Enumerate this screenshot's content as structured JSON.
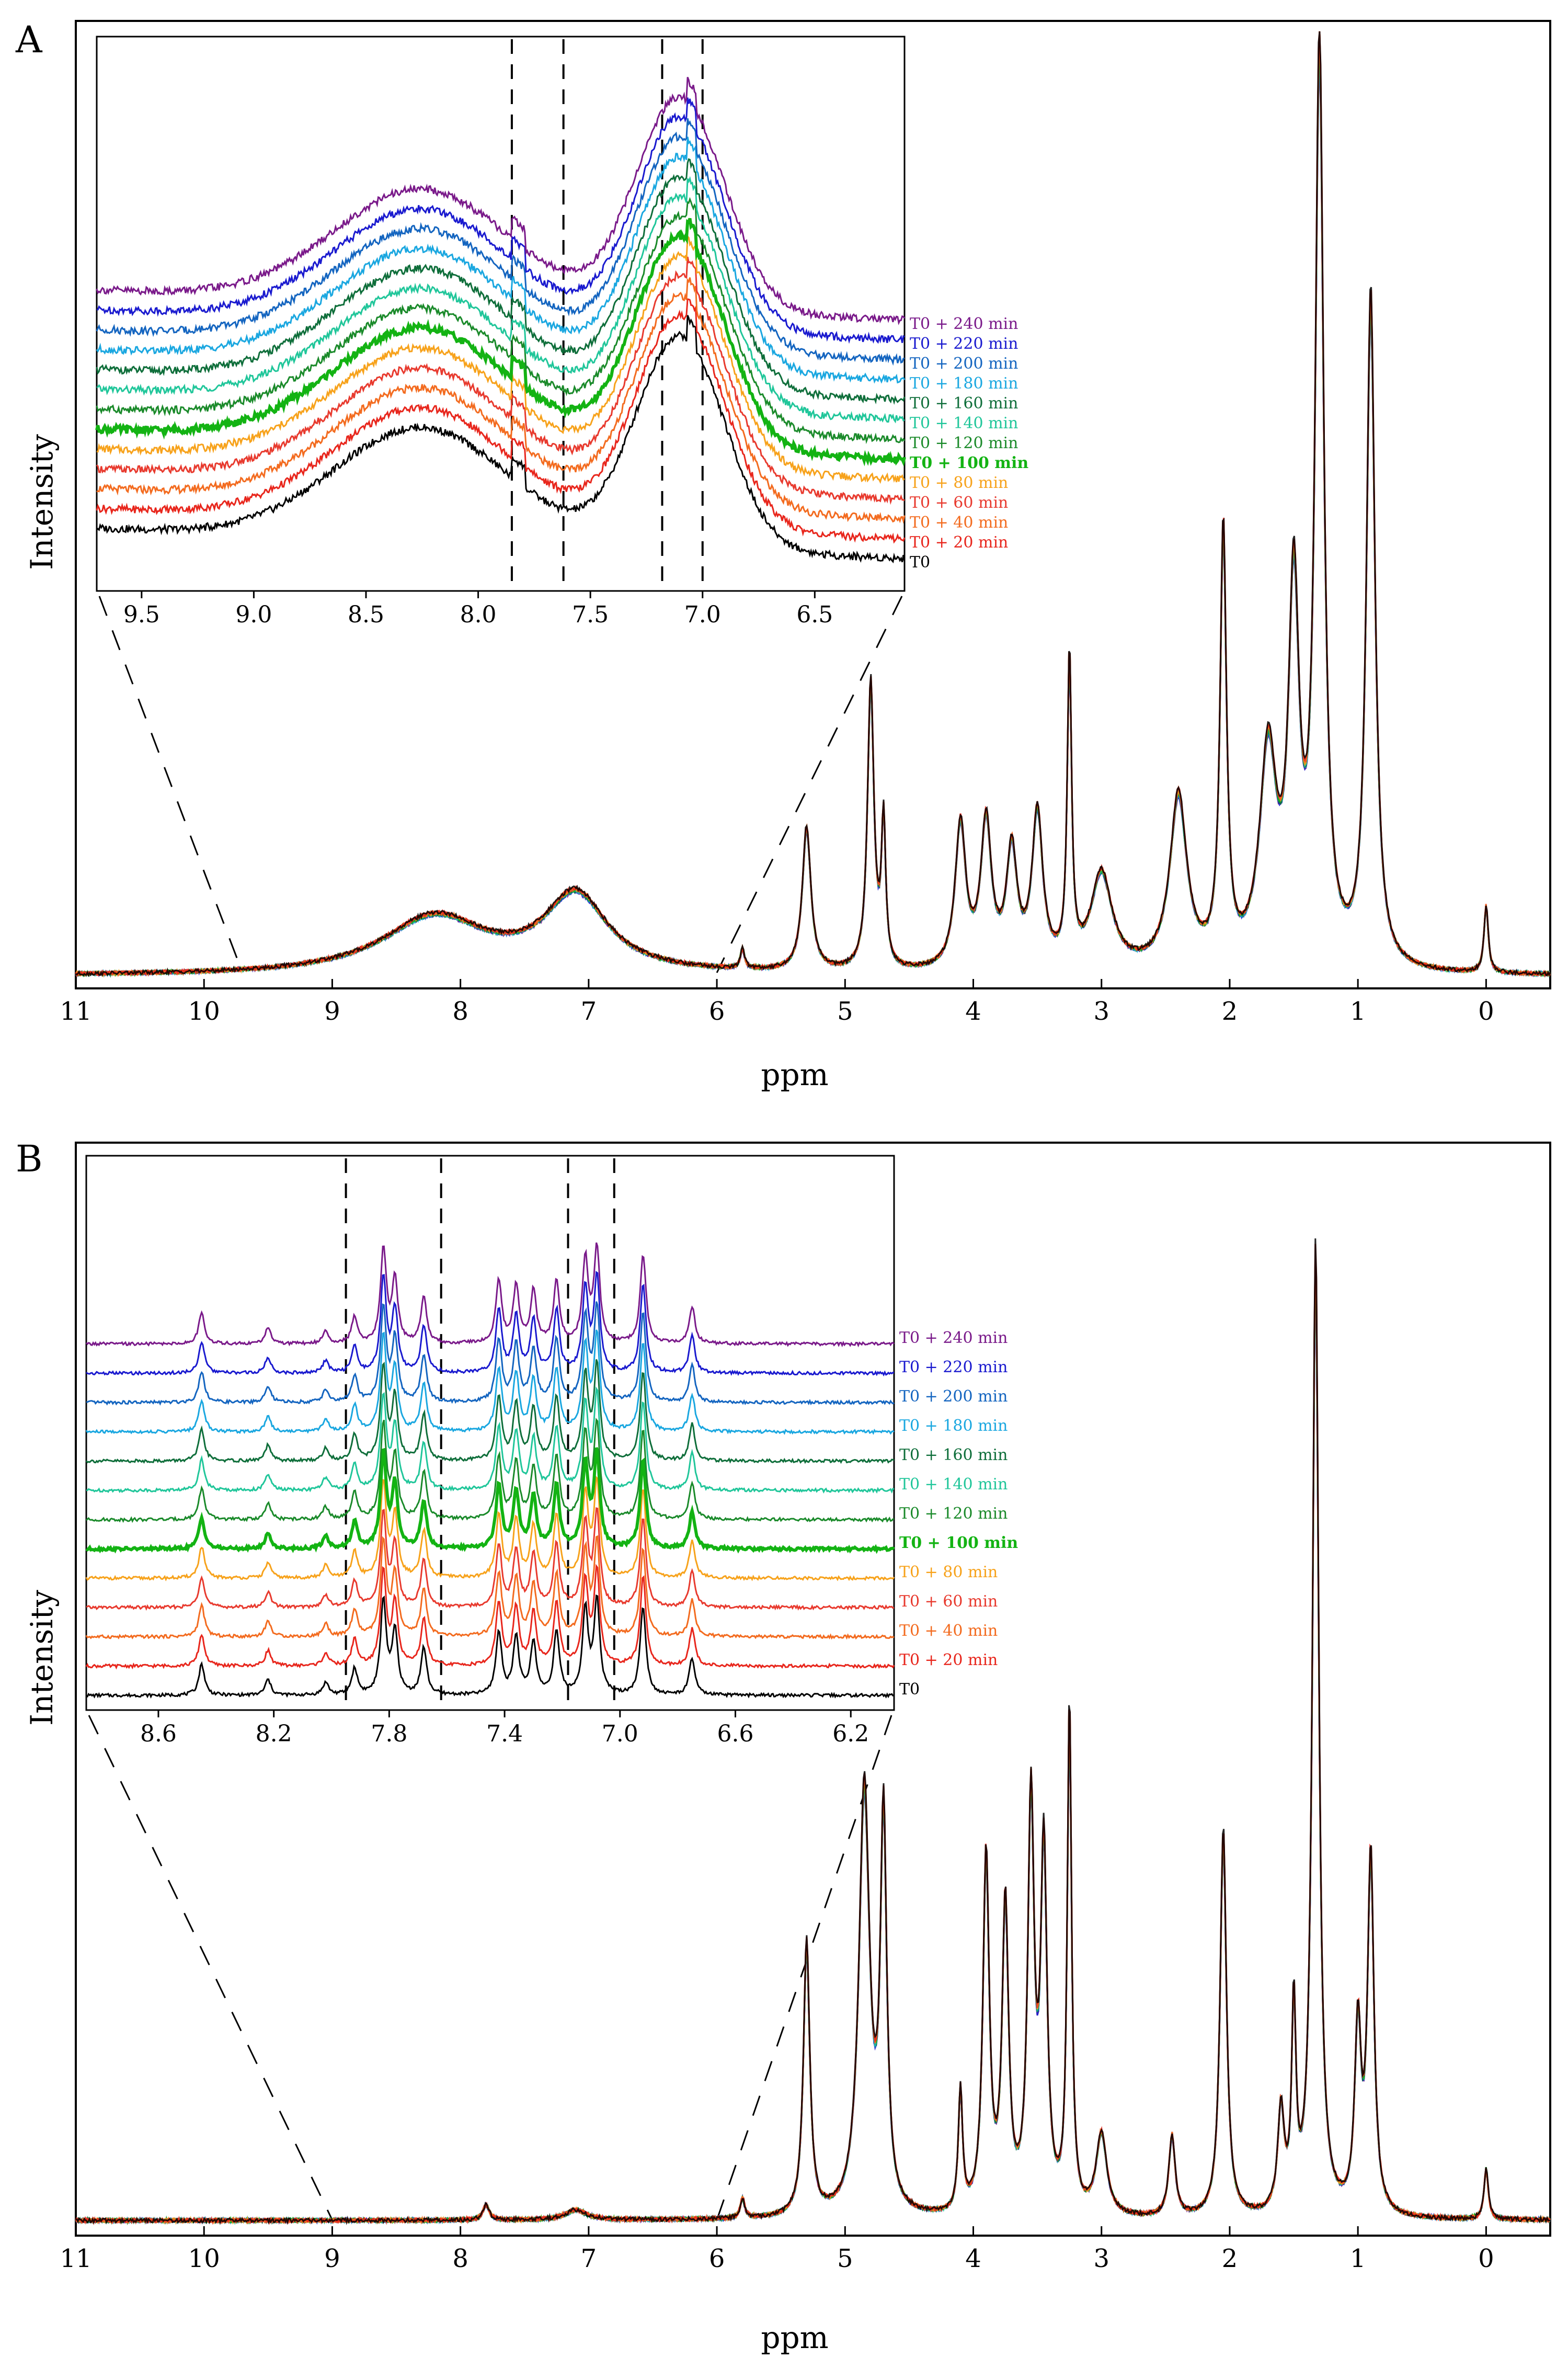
{
  "figure": {
    "panels": [
      "A",
      "B"
    ]
  },
  "series_colors": {
    "T0": "#000000",
    "T0 + 20 min": "#e8261c",
    "T0 + 40 min": "#f36b1f",
    "T0 + 60 min": "#e83a2e",
    "T0 + 80 min": "#f7a21b",
    "T0 + 100 min": "#13b313",
    "T0 + 120 min": "#1a8a2a",
    "T0 + 140 min": "#20c69a",
    "T0 + 160 min": "#0e6e3a",
    "T0 + 180 min": "#1aa7e0",
    "T0 + 200 min": "#1465c0",
    "T0 + 220 min": "#1a1acf",
    "T0 + 240 min": "#7a1a8a"
  },
  "chart_data": [
    {
      "panel": "A",
      "type": "line",
      "title": "",
      "xlabel": "ppm",
      "ylabel": "Intensity",
      "xlim": [
        11,
        -0.5
      ],
      "xticks": [
        11,
        10,
        9,
        8,
        7,
        6,
        5,
        4,
        3,
        2,
        1,
        0
      ],
      "series": [
        "T0",
        "T0 + 20 min",
        "T0 + 40 min",
        "T0 + 60 min",
        "T0 + 80 min",
        "T0 + 100 min",
        "T0 + 120 min",
        "T0 + 140 min",
        "T0 + 160 min",
        "T0 + 180 min",
        "T0 + 200 min",
        "T0 + 220 min",
        "T0 + 240 min"
      ],
      "peaks": [
        {
          "ppm": 8.2,
          "height": 0.06,
          "width": 0.5
        },
        {
          "ppm": 7.1,
          "height": 0.08,
          "width": 0.3
        },
        {
          "ppm": 5.8,
          "height": 0.02,
          "width": 0.02
        },
        {
          "ppm": 5.3,
          "height": 0.15,
          "width": 0.04
        },
        {
          "ppm": 4.8,
          "height": 0.3,
          "width": 0.03
        },
        {
          "ppm": 4.7,
          "height": 0.15,
          "width": 0.02
        },
        {
          "ppm": 4.1,
          "height": 0.15,
          "width": 0.05
        },
        {
          "ppm": 3.9,
          "height": 0.15,
          "width": 0.05
        },
        {
          "ppm": 3.7,
          "height": 0.12,
          "width": 0.05
        },
        {
          "ppm": 3.5,
          "height": 0.16,
          "width": 0.05
        },
        {
          "ppm": 3.25,
          "height": 0.32,
          "width": 0.02
        },
        {
          "ppm": 3.0,
          "height": 0.1,
          "width": 0.1
        },
        {
          "ppm": 2.4,
          "height": 0.18,
          "width": 0.08
        },
        {
          "ppm": 2.05,
          "height": 0.45,
          "width": 0.03
        },
        {
          "ppm": 1.7,
          "height": 0.22,
          "width": 0.08
        },
        {
          "ppm": 1.5,
          "height": 0.38,
          "width": 0.05
        },
        {
          "ppm": 1.3,
          "height": 0.95,
          "width": 0.04
        },
        {
          "ppm": 0.9,
          "height": 0.7,
          "width": 0.04
        },
        {
          "ppm": 0.0,
          "height": 0.07,
          "width": 0.02
        }
      ],
      "inset": {
        "xlim": [
          9.7,
          6.1
        ],
        "xticks": [
          9.5,
          9.0,
          8.5,
          8.0,
          7.5,
          7.0,
          6.5
        ],
        "xtick_labels": [
          "9.5",
          "9.0",
          "8.5",
          "8.0",
          "7.5",
          "7.0",
          "6.5"
        ],
        "dashed_lines_ppm": [
          7.85,
          7.62,
          7.18,
          7.0
        ],
        "zoom_range_main_ppm": [
          9.7,
          6.0
        ],
        "legend": [
          "T0 + 240 min",
          "T0 + 220 min",
          "T0 + 200 min",
          "T0 + 180 min",
          "T0 + 160 min",
          "T0 + 140 min",
          "T0 + 120 min",
          "T0 + 100 min",
          "T0 + 80 min",
          "T0 + 60 min",
          "T0 + 40 min",
          "T0 + 20 min",
          "T0"
        ]
      }
    },
    {
      "panel": "B",
      "type": "line",
      "title": "",
      "xlabel": "ppm",
      "ylabel": "Intensity",
      "xlim": [
        11,
        -0.5
      ],
      "xticks": [
        11,
        10,
        9,
        8,
        7,
        6,
        5,
        4,
        3,
        2,
        1,
        0
      ],
      "series": [
        "T0",
        "T0 + 20 min",
        "T0 + 40 min",
        "T0 + 60 min",
        "T0 + 80 min",
        "T0 + 100 min",
        "T0 + 120 min",
        "T0 + 140 min",
        "T0 + 160 min",
        "T0 + 180 min",
        "T0 + 200 min",
        "T0 + 220 min",
        "T0 + 240 min"
      ],
      "peaks": [
        {
          "ppm": 7.8,
          "height": 0.015,
          "width": 0.03
        },
        {
          "ppm": 7.1,
          "height": 0.01,
          "width": 0.1
        },
        {
          "ppm": 5.8,
          "height": 0.02,
          "width": 0.02
        },
        {
          "ppm": 5.3,
          "height": 0.27,
          "width": 0.03
        },
        {
          "ppm": 4.85,
          "height": 0.42,
          "width": 0.05
        },
        {
          "ppm": 4.7,
          "height": 0.38,
          "width": 0.03
        },
        {
          "ppm": 4.1,
          "height": 0.12,
          "width": 0.02
        },
        {
          "ppm": 3.9,
          "height": 0.35,
          "width": 0.03
        },
        {
          "ppm": 3.75,
          "height": 0.3,
          "width": 0.03
        },
        {
          "ppm": 3.55,
          "height": 0.4,
          "width": 0.03
        },
        {
          "ppm": 3.45,
          "height": 0.35,
          "width": 0.03
        },
        {
          "ppm": 3.25,
          "height": 0.5,
          "width": 0.02
        },
        {
          "ppm": 3.0,
          "height": 0.08,
          "width": 0.05
        },
        {
          "ppm": 2.45,
          "height": 0.08,
          "width": 0.03
        },
        {
          "ppm": 2.05,
          "height": 0.38,
          "width": 0.03
        },
        {
          "ppm": 1.6,
          "height": 0.1,
          "width": 0.03
        },
        {
          "ppm": 1.5,
          "height": 0.2,
          "width": 0.02
        },
        {
          "ppm": 1.33,
          "height": 0.95,
          "width": 0.03
        },
        {
          "ppm": 1.0,
          "height": 0.18,
          "width": 0.03
        },
        {
          "ppm": 0.9,
          "height": 0.35,
          "width": 0.03
        },
        {
          "ppm": 0.0,
          "height": 0.05,
          "width": 0.02
        }
      ],
      "inset": {
        "xlim": [
          8.85,
          6.05
        ],
        "xticks": [
          8.6,
          8.2,
          7.8,
          7.4,
          7.0,
          6.6,
          6.2
        ],
        "xtick_labels": [
          "8.6",
          "8.2",
          "7.8",
          "7.4",
          "7.0",
          "6.6",
          "6.2"
        ],
        "dashed_lines_ppm": [
          7.95,
          7.62,
          7.18,
          7.02
        ],
        "zoom_range_main_ppm": [
          9.0,
          6.0
        ],
        "legend": [
          "T0 + 240 min",
          "T0 + 220 min",
          "T0 + 200 min",
          "T0 + 180 min",
          "T0 + 160 min",
          "T0 + 140 min",
          "T0 + 120 min",
          "T0 + 100 min",
          "T0 + 80 min",
          "T0 + 60 min",
          "T0 + 40 min",
          "T0 + 20 min",
          "T0"
        ]
      }
    }
  ]
}
